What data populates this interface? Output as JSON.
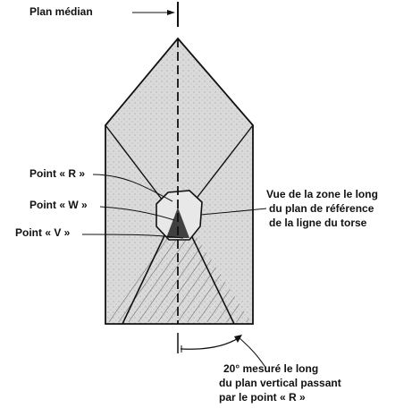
{
  "labels": {
    "median_plane": "Plan médian",
    "point_r": "Point « R »",
    "point_w": "Point « W »",
    "point_v": "Point « V »",
    "zone_view_line1": "Vue de la zone le long",
    "zone_view_line2": "du plan de référence",
    "zone_view_line3": "de la ligne du torse",
    "angle_note_line1": "20° mesuré le long",
    "angle_note_line2": "du plan vertical passant",
    "angle_note_line3": "par le point « R »"
  },
  "colors": {
    "outline": "#111111",
    "shading": "#d9d9d9",
    "hatch": "#555555",
    "background": "#ffffff"
  }
}
